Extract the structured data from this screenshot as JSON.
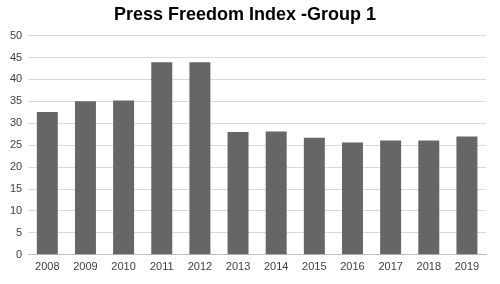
{
  "chart_data": {
    "type": "bar",
    "title": "Press Freedom Index -Group 1",
    "categories": [
      "2008",
      "2009",
      "2010",
      "2011",
      "2012",
      "2013",
      "2014",
      "2015",
      "2016",
      "2017",
      "2018",
      "2019"
    ],
    "values": [
      32.6,
      35.0,
      35.2,
      43.9,
      43.9,
      28.0,
      28.1,
      26.7,
      25.6,
      26.1,
      26.1,
      27.0
    ],
    "color": "#666666",
    "ylim": [
      0,
      50
    ],
    "yticks": [
      0,
      5,
      10,
      15,
      20,
      25,
      30,
      35,
      40,
      45,
      50
    ],
    "grid": true
  }
}
